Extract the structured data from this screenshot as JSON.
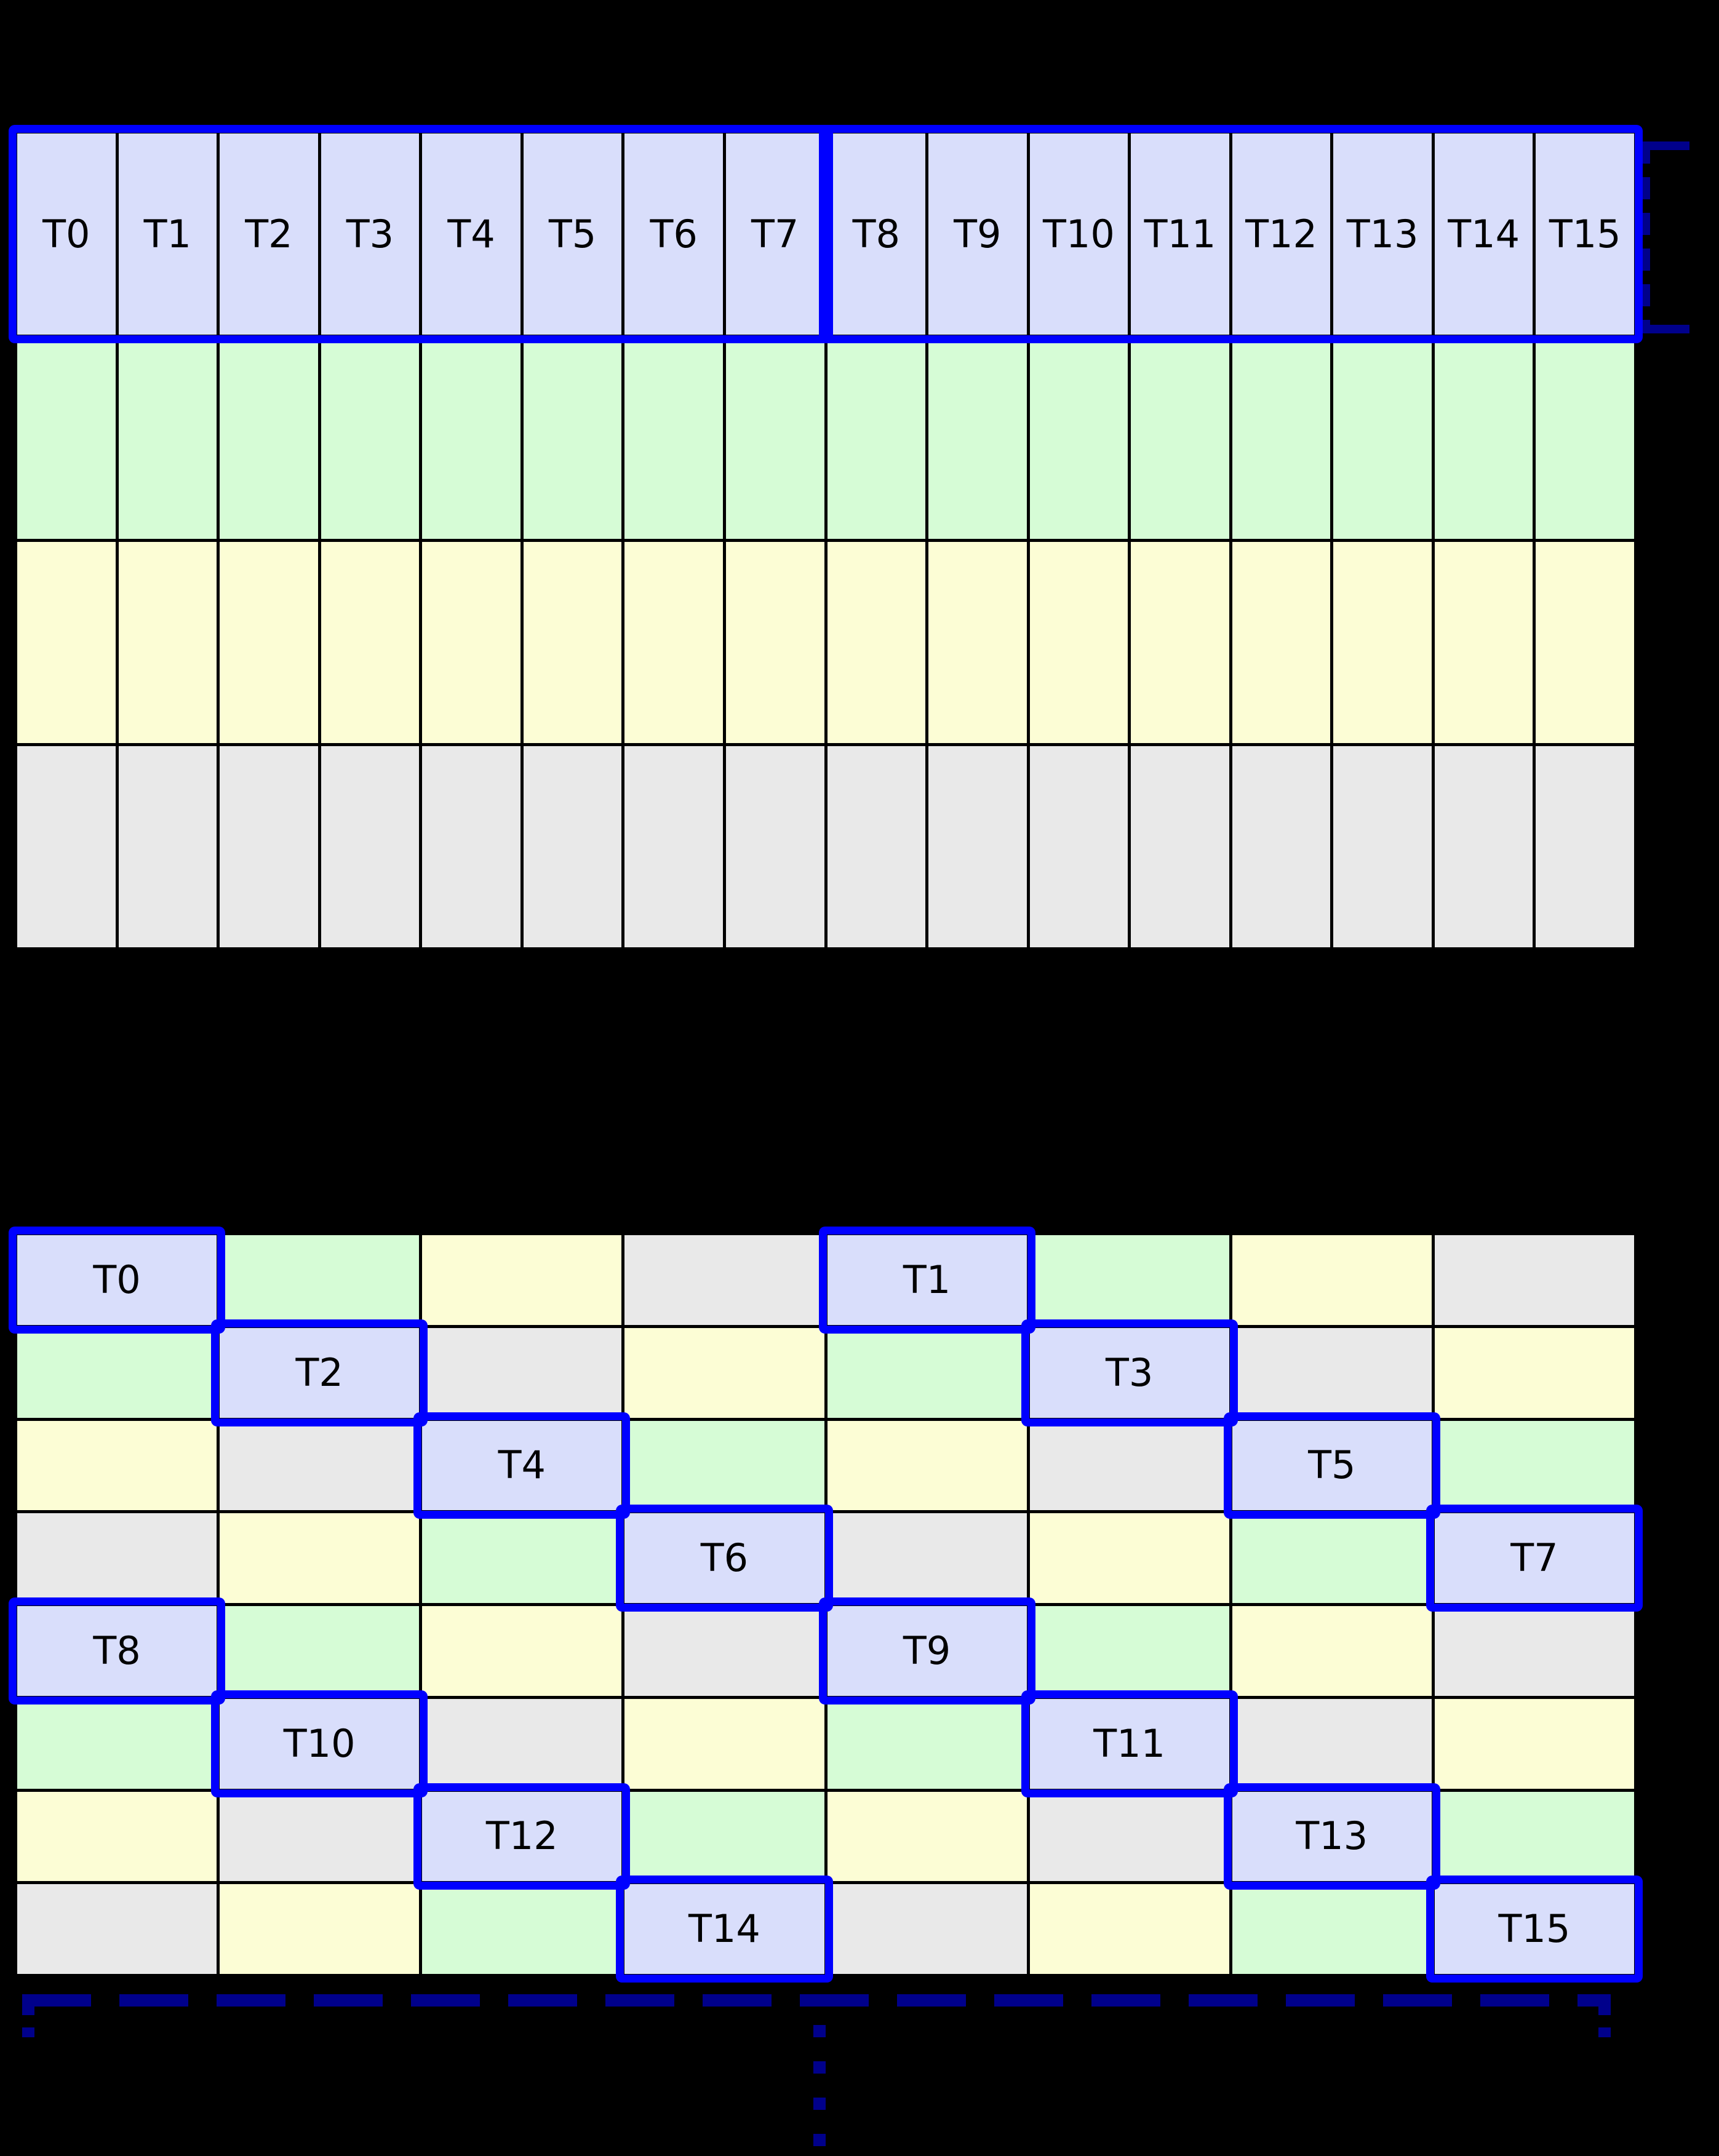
{
  "page": {
    "background": "#000000"
  },
  "colors": {
    "cell_blue": "#d9defb",
    "cell_green": "#d6fcd6",
    "cell_yellow": "#fcfdd5",
    "cell_gray": "#e9e9e9",
    "outline_blue": "#0000ff",
    "bracket_navy": "#00008b",
    "grid_line": "#000000",
    "label_color": "#000000"
  },
  "top_grid": {
    "thread_labels": [
      "T0",
      "T1",
      "T2",
      "T3",
      "T4",
      "T5",
      "T6",
      "T7",
      "T8",
      "T9",
      "T10",
      "T11",
      "T12",
      "T13",
      "T14",
      "T15"
    ],
    "row_fills": [
      "blue",
      "green",
      "yellow",
      "gray"
    ],
    "rows": 4,
    "cols": 16,
    "groups": [
      [
        0,
        7
      ],
      [
        8,
        15
      ]
    ]
  },
  "bottom_grid": {
    "rows": 8,
    "cols": 8,
    "cell_fills": [
      [
        "blue",
        "green",
        "yellow",
        "gray",
        "blue",
        "green",
        "yellow",
        "gray"
      ],
      [
        "green",
        "blue",
        "gray",
        "yellow",
        "green",
        "blue",
        "gray",
        "yellow"
      ],
      [
        "yellow",
        "gray",
        "blue",
        "green",
        "yellow",
        "gray",
        "blue",
        "green"
      ],
      [
        "gray",
        "yellow",
        "green",
        "blue",
        "gray",
        "yellow",
        "green",
        "blue"
      ],
      [
        "blue",
        "green",
        "yellow",
        "gray",
        "blue",
        "green",
        "yellow",
        "gray"
      ],
      [
        "green",
        "blue",
        "gray",
        "yellow",
        "green",
        "blue",
        "gray",
        "yellow"
      ],
      [
        "yellow",
        "gray",
        "blue",
        "green",
        "yellow",
        "gray",
        "blue",
        "green"
      ],
      [
        "gray",
        "yellow",
        "green",
        "blue",
        "gray",
        "yellow",
        "green",
        "blue"
      ]
    ],
    "thread_cells": [
      {
        "label": "T0",
        "row": 0,
        "col": 0
      },
      {
        "label": "T1",
        "row": 0,
        "col": 4
      },
      {
        "label": "T2",
        "row": 1,
        "col": 1
      },
      {
        "label": "T3",
        "row": 1,
        "col": 5
      },
      {
        "label": "T4",
        "row": 2,
        "col": 2
      },
      {
        "label": "T5",
        "row": 2,
        "col": 6
      },
      {
        "label": "T6",
        "row": 3,
        "col": 3
      },
      {
        "label": "T7",
        "row": 3,
        "col": 7
      },
      {
        "label": "T8",
        "row": 4,
        "col": 0
      },
      {
        "label": "T9",
        "row": 4,
        "col": 4
      },
      {
        "label": "T10",
        "row": 5,
        "col": 1
      },
      {
        "label": "T11",
        "row": 5,
        "col": 5
      },
      {
        "label": "T12",
        "row": 6,
        "col": 2
      },
      {
        "label": "T13",
        "row": 6,
        "col": 6
      },
      {
        "label": "T14",
        "row": 7,
        "col": 3
      },
      {
        "label": "T15",
        "row": 7,
        "col": 7
      }
    ]
  },
  "annotations": {
    "ellipsis_dots": 4
  }
}
